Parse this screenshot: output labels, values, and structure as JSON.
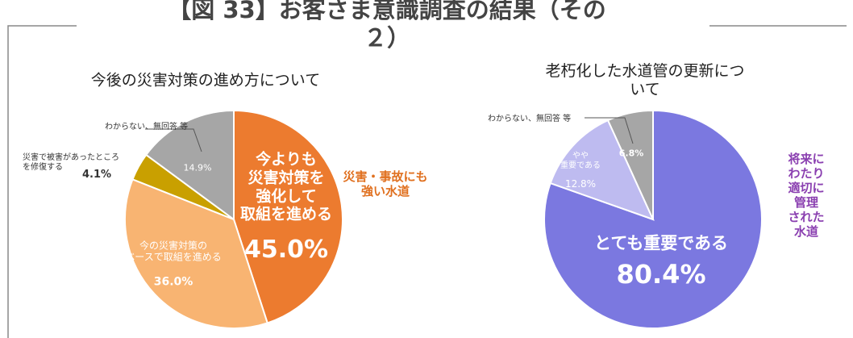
{
  "title": "【図 33】お客さま意識調査の結果（その２）",
  "chart_data": [
    {
      "type": "pie",
      "title": "今後の災害対策の進め方について",
      "categories": [
        "今よりも\n災害対策を\n強化して\n取組を進める",
        "今の災害対策の\nベースで取組を進める",
        "災害で被害があったところ\nを修復する",
        "わからない、無回答 等"
      ],
      "values": [
        45.0,
        36.0,
        4.1,
        14.9
      ],
      "value_labels": [
        "45.0%",
        "36.0%",
        "4.1%",
        "14.9%"
      ],
      "colors": [
        "#ec7b2f",
        "#f8b472",
        "#c9a000",
        "#a6a6a6"
      ],
      "annotation": "災害・事故にも\n強い水道"
    },
    {
      "type": "pie",
      "title": "老朽化した水道管の更新について",
      "categories": [
        "とても重要である",
        "やや\n重要である",
        "わからない、無回答 等"
      ],
      "values": [
        80.4,
        12.8,
        6.8
      ],
      "value_labels": [
        "80.4%",
        "12.8%",
        "6.8%"
      ],
      "colors": [
        "#7b78e0",
        "#bebbf0",
        "#a6a6a6"
      ],
      "annotation": "将来にわたり\n適切に管理\nされた水道"
    }
  ]
}
